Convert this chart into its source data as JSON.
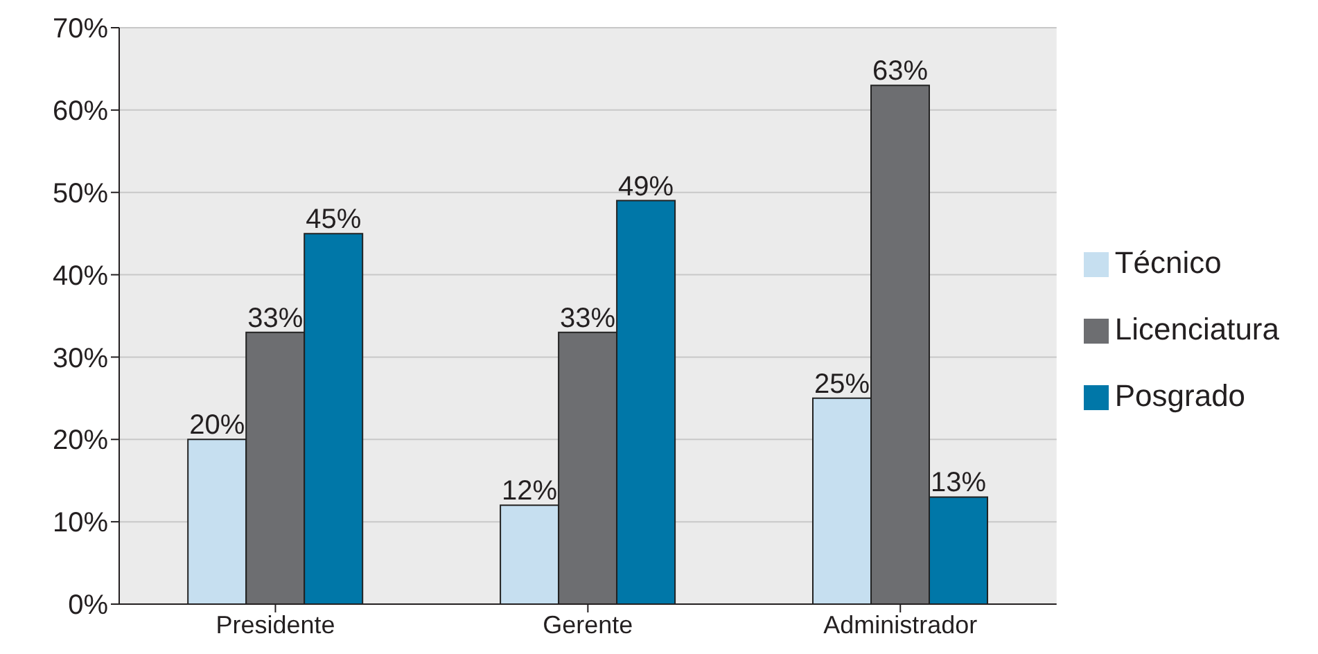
{
  "chart_data": {
    "type": "bar",
    "categories": [
      "Presidente",
      "Gerente",
      "Administrador"
    ],
    "series": [
      {
        "name": "Técnico",
        "color": "#c6dff0",
        "values": [
          20,
          12,
          25
        ],
        "value_labels": [
          "20%",
          "12%",
          "25%"
        ]
      },
      {
        "name": "Licenciatura",
        "color": "#6d6e71",
        "values": [
          33,
          33,
          63
        ],
        "value_labels": [
          "33%",
          "33%",
          "63%"
        ]
      },
      {
        "name": "Posgrado",
        "color": "#0077a8",
        "values": [
          45,
          49,
          13
        ],
        "value_labels": [
          "45%",
          "49%",
          "13%"
        ]
      }
    ],
    "ylim": [
      0,
      70
    ],
    "yticks": [
      {
        "value": 0,
        "label": "0%"
      },
      {
        "value": 10,
        "label": "10%"
      },
      {
        "value": 20,
        "label": "20%"
      },
      {
        "value": 30,
        "label": "30%"
      },
      {
        "value": 40,
        "label": "40%"
      },
      {
        "value": 50,
        "label": "50%"
      },
      {
        "value": 60,
        "label": "60%"
      },
      {
        "value": 70,
        "label": "70%"
      }
    ],
    "grid": "y",
    "legend": "right"
  }
}
